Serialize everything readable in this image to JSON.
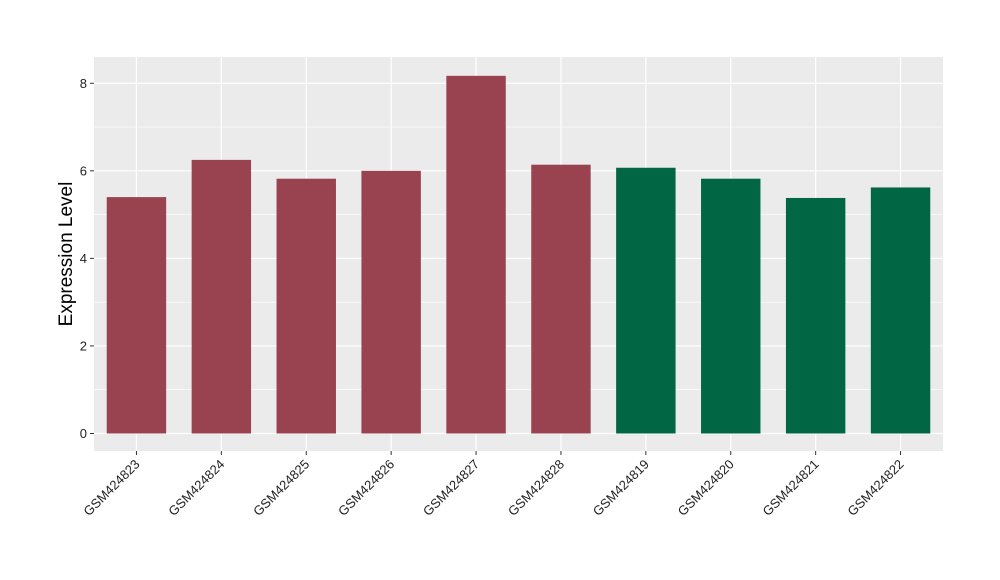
{
  "chart_data": {
    "type": "bar",
    "title": "",
    "xlabel": "",
    "ylabel": "Expression Level",
    "categories": [
      "GSM424823",
      "GSM424824",
      "GSM424825",
      "GSM424826",
      "GSM424827",
      "GSM424828",
      "GSM424819",
      "GSM424820",
      "GSM424821",
      "GSM424822"
    ],
    "values": [
      5.4,
      6.25,
      5.82,
      6.0,
      8.17,
      6.14,
      6.07,
      5.82,
      5.38,
      5.62
    ],
    "group": [
      "a",
      "a",
      "a",
      "a",
      "a",
      "a",
      "b",
      "b",
      "b",
      "b"
    ],
    "colors": {
      "a": "#994350",
      "b": "#006644"
    },
    "ylim": [
      -0.4,
      8.6
    ],
    "yticks": [
      0,
      2,
      4,
      6,
      8
    ],
    "grid": true,
    "panel_color": "#EBEBEB",
    "grid_color": "#FFFFFF",
    "legend": "none"
  }
}
